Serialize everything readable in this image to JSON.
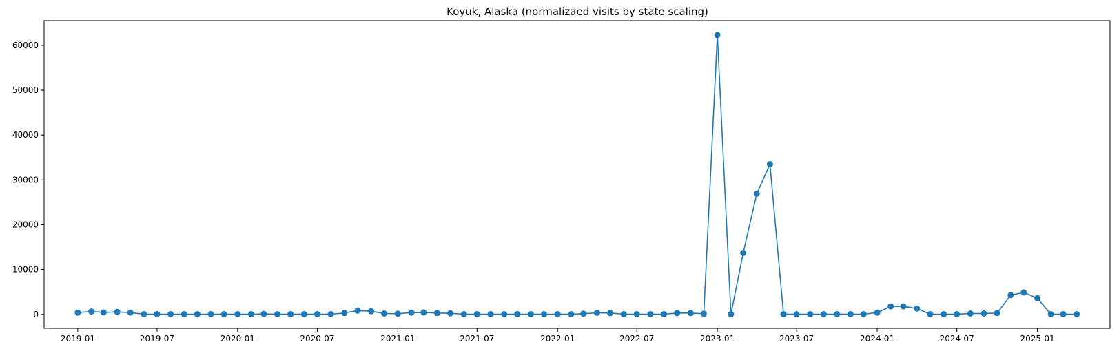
{
  "chart_data": {
    "type": "line",
    "title": "Koyuk, Alaska (normalizaed visits by state scaling)",
    "xlabel": "",
    "ylabel": "",
    "grid": false,
    "legend": "none",
    "color": "#1f77b4",
    "marker": "circle",
    "xlim": [
      "2018-10-16",
      "2025-06-16"
    ],
    "ylim": [
      -3100,
      65500
    ],
    "x_ticks": [
      "2019-01",
      "2019-07",
      "2020-01",
      "2020-07",
      "2021-01",
      "2021-07",
      "2022-01",
      "2022-07",
      "2023-01",
      "2023-07",
      "2024-01",
      "2024-07",
      "2025-01"
    ],
    "y_ticks": [
      0,
      10000,
      20000,
      30000,
      40000,
      50000,
      60000
    ],
    "x": [
      "2019-01-01",
      "2019-02-01",
      "2019-03-01",
      "2019-04-01",
      "2019-05-01",
      "2019-06-01",
      "2019-07-01",
      "2019-08-01",
      "2019-09-01",
      "2019-10-01",
      "2019-11-01",
      "2019-12-01",
      "2020-01-01",
      "2020-02-01",
      "2020-03-01",
      "2020-04-01",
      "2020-05-01",
      "2020-06-01",
      "2020-07-01",
      "2020-08-01",
      "2020-09-01",
      "2020-10-01",
      "2020-11-01",
      "2020-12-01",
      "2021-01-01",
      "2021-02-01",
      "2021-03-01",
      "2021-04-01",
      "2021-05-01",
      "2021-06-01",
      "2021-07-01",
      "2021-08-01",
      "2021-09-01",
      "2021-10-01",
      "2021-11-01",
      "2021-12-01",
      "2022-01-01",
      "2022-02-01",
      "2022-03-01",
      "2022-04-01",
      "2022-05-01",
      "2022-06-01",
      "2022-07-01",
      "2022-08-01",
      "2022-09-01",
      "2022-10-01",
      "2022-11-01",
      "2022-12-01",
      "2023-01-01",
      "2023-02-01",
      "2023-03-01",
      "2023-04-01",
      "2023-05-01",
      "2023-06-01",
      "2023-07-01",
      "2023-08-01",
      "2023-09-01",
      "2023-10-01",
      "2023-11-01",
      "2023-12-01",
      "2024-01-01",
      "2024-02-01",
      "2024-03-01",
      "2024-04-01",
      "2024-05-01",
      "2024-06-01",
      "2024-07-01",
      "2024-08-01",
      "2024-09-01",
      "2024-10-01",
      "2024-11-01",
      "2024-12-01",
      "2025-01-01",
      "2025-02-01",
      "2025-03-01",
      "2025-04-01"
    ],
    "series": [
      {
        "values": [
          400,
          650,
          450,
          550,
          400,
          50,
          50,
          50,
          50,
          50,
          50,
          50,
          50,
          50,
          100,
          50,
          50,
          50,
          50,
          50,
          300,
          850,
          700,
          200,
          150,
          400,
          450,
          300,
          250,
          50,
          50,
          50,
          50,
          50,
          50,
          50,
          50,
          50,
          150,
          350,
          300,
          50,
          50,
          50,
          50,
          300,
          300,
          150,
          62300,
          50,
          13700,
          26900,
          33500,
          50,
          50,
          50,
          50,
          50,
          50,
          50,
          400,
          1800,
          1800,
          1300,
          50,
          50,
          50,
          200,
          200,
          300,
          4300,
          4900,
          3600,
          50,
          50,
          50
        ]
      }
    ]
  }
}
